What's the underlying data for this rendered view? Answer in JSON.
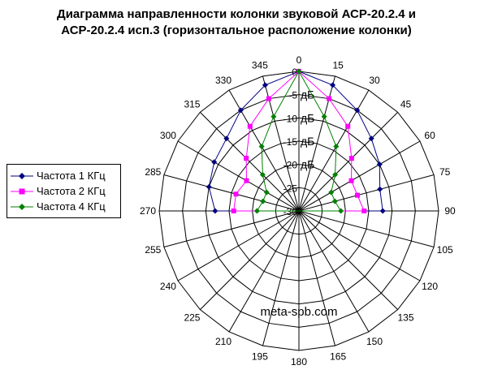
{
  "chart_data": {
    "type": "polar",
    "title_line1": "Диаграмма направленности колонки звуковой АСР-20.2.4 и",
    "title_line2": "АСР-20.2.4 исп.3 (горизонтальное расположение колонки)",
    "angle_labels": [
      "0",
      "15",
      "30",
      "45",
      "60",
      "75",
      "90",
      "105",
      "120",
      "135",
      "150",
      "165",
      "180",
      "195",
      "210",
      "225",
      "240",
      "255",
      "270",
      "285",
      "300",
      "315",
      "330",
      "345"
    ],
    "radial_labels": [
      "0",
      "-5",
      "-10",
      "-15",
      "-20",
      "-25",
      "-30"
    ],
    "radial_unit_labels": [
      "дБ",
      "дБ",
      "дБ",
      "дБ"
    ],
    "radial_range": [
      -30,
      0
    ],
    "watermark": "meta-spb.com",
    "legend_position": "left",
    "angles": [
      0,
      15,
      30,
      45,
      60,
      75,
      90,
      270,
      285,
      300,
      315,
      330,
      345
    ],
    "series": [
      {
        "name": "Частота 1 КГц",
        "color": "#000080",
        "marker": "diamond",
        "values": [
          0,
          -2,
          -5,
          -8,
          -10,
          -12,
          -12,
          -12,
          -10,
          -9,
          -8,
          -5,
          -2
        ]
      },
      {
        "name": "Частота 2 КГц",
        "color": "#ff00ff",
        "marker": "square",
        "values": [
          0,
          -5,
          -9,
          -14,
          -17,
          -17,
          -16,
          -16,
          -16,
          -17,
          -14,
          -9,
          -5
        ]
      },
      {
        "name": "Частота 4 КГц",
        "color": "#008000",
        "marker": "diamond",
        "values": [
          0,
          -9,
          -14,
          -19,
          -22,
          -22,
          -21,
          -21,
          -22,
          -22,
          -19,
          -14,
          -9
        ]
      }
    ]
  }
}
